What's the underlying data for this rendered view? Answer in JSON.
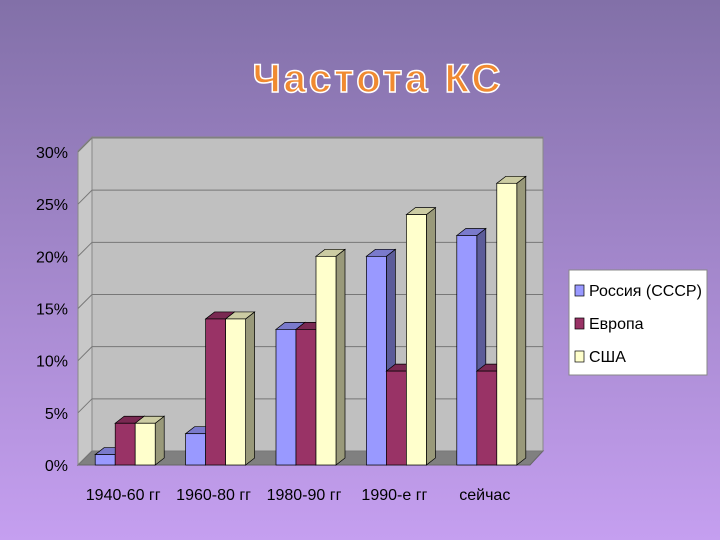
{
  "chart_data": {
    "type": "bar3d",
    "title": "Частота КС",
    "categories": [
      "1940-60 гг",
      "1960-80 гг",
      "1980-90 гг",
      "1990-е гг",
      "сейчас"
    ],
    "series": [
      {
        "name": "Россия (СССР)",
        "color": "#9999ff",
        "values": [
          1,
          3,
          13,
          20,
          22
        ]
      },
      {
        "name": "Европа",
        "color": "#993366",
        "values": [
          4,
          14,
          13,
          9,
          9
        ]
      },
      {
        "name": "США",
        "color": "#ffffcc",
        "values": [
          4,
          14,
          20,
          24,
          27
        ]
      }
    ],
    "ylim": [
      0,
      30
    ],
    "yticks": [
      {
        "value": 0,
        "label": "0%"
      },
      {
        "value": 5,
        "label": "5%"
      },
      {
        "value": 10,
        "label": "10%"
      },
      {
        "value": 15,
        "label": "15%"
      },
      {
        "value": 20,
        "label": "20%"
      },
      {
        "value": 25,
        "label": "25%"
      },
      {
        "value": 30,
        "label": "30%"
      }
    ],
    "grid": true
  }
}
